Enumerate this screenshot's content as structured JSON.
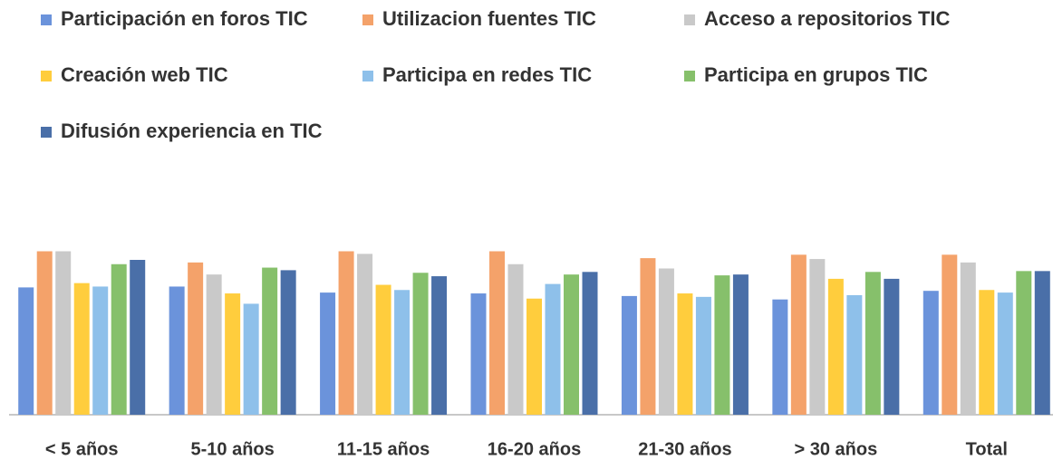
{
  "chart_data": {
    "type": "bar",
    "categories": [
      "< 5 años",
      "5-10 años",
      "11-15 años",
      "16-20 años",
      "21-30 años",
      "> 30 años",
      "Total"
    ],
    "series": [
      {
        "name": "Participación en foros TIC",
        "color": "#6b93db",
        "values": [
          148,
          149,
          142,
          141,
          138,
          134,
          144
        ]
      },
      {
        "name": "Utilizacion fuentes TIC",
        "color": "#f4a26a",
        "values": [
          190,
          177,
          190,
          190,
          182,
          186,
          186
        ]
      },
      {
        "name": "Acceso a repositorios TIC",
        "color": "#c9c9c9",
        "values": [
          190,
          163,
          187,
          175,
          170,
          181,
          177
        ]
      },
      {
        "name": "Creación web TIC",
        "color": "#ffcd3d",
        "values": [
          153,
          141,
          151,
          135,
          141,
          158,
          145
        ]
      },
      {
        "name": "Participa en redes TIC",
        "color": "#8ec0ea",
        "values": [
          149,
          129,
          145,
          152,
          137,
          139,
          142
        ]
      },
      {
        "name": "Participa en  grupos TIC",
        "color": "#86c06b",
        "values": [
          175,
          171,
          165,
          163,
          162,
          166,
          167
        ]
      },
      {
        "name": "Difusión experiencia en TIC",
        "color": "#4a6fa8",
        "values": [
          180,
          168,
          161,
          166,
          163,
          158,
          167
        ]
      }
    ],
    "ylim": [
      0,
      200
    ]
  }
}
